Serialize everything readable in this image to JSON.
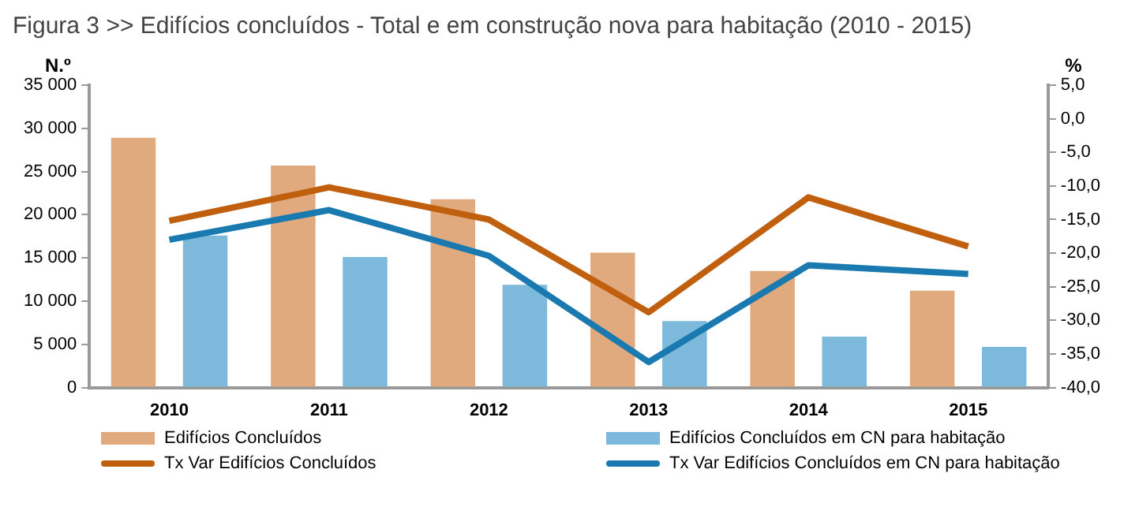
{
  "chart_data": {
    "type": "bar",
    "title": "Figura 3 >> Edifícios concluídos - Total e em construção nova para habitação (2010 - 2015)",
    "ylabel": "N.º",
    "y2label": "%",
    "categories": [
      "2010",
      "2011",
      "2012",
      "2013",
      "2014",
      "2015"
    ],
    "series": [
      {
        "name": "Edifícios Concluídos",
        "color": "#e0aa7e",
        "values": [
          28900,
          25700,
          21800,
          15600,
          13500,
          11200
        ]
      },
      {
        "name": "Edifícios Concluídos  em CN para habitação",
        "color": "#7db9da",
        "values": [
          17600,
          15100,
          11900,
          7700,
          5900,
          4700
        ]
      },
      {
        "name": "Tx Var Edifícios Concluídos",
        "type": "line",
        "axis": "y2",
        "color": "#c0600f",
        "values": [
          -15.2,
          -10.2,
          -15.0,
          -28.8,
          -11.7,
          -19.0
        ]
      },
      {
        "name": "Tx Var Edifícios Concluídos  em CN para habitação",
        "type": "line",
        "axis": "y2",
        "color": "#1a7ab0",
        "values": [
          -18.0,
          -13.6,
          -20.4,
          -36.2,
          -21.8,
          -23.1
        ]
      }
    ],
    "ylim": [
      0,
      35000
    ],
    "yticks": [
      0,
      {
        "value": 5000,
        "label": "5 000"
      },
      {
        "value": 10000,
        "label": "10 000"
      },
      {
        "value": 15000,
        "label": "15 000"
      },
      {
        "value": 20000,
        "label": "20 000"
      },
      {
        "value": 25000,
        "label": "25 000"
      },
      {
        "value": 30000,
        "label": "30 000"
      },
      {
        "value": 35000,
        "label": "35 000"
      }
    ],
    "y2lim": [
      -40,
      5
    ],
    "y2ticks": [
      {
        "value": 5,
        "label": "5,0"
      },
      {
        "value": 0,
        "label": "0,0"
      },
      {
        "value": -5,
        "label": "-5,0"
      },
      {
        "value": -10,
        "label": "-10,0"
      },
      {
        "value": -15,
        "label": "-15,0"
      },
      {
        "value": -20,
        "label": "-20,0"
      },
      {
        "value": -25,
        "label": "-25,0"
      },
      {
        "value": -30,
        "label": "-30,0"
      },
      {
        "value": -35,
        "label": "-35,0"
      },
      {
        "value": -40,
        "label": "-40,0"
      }
    ],
    "grid": false,
    "legend": "bottom",
    "marker": "none",
    "line_style": "solid"
  }
}
